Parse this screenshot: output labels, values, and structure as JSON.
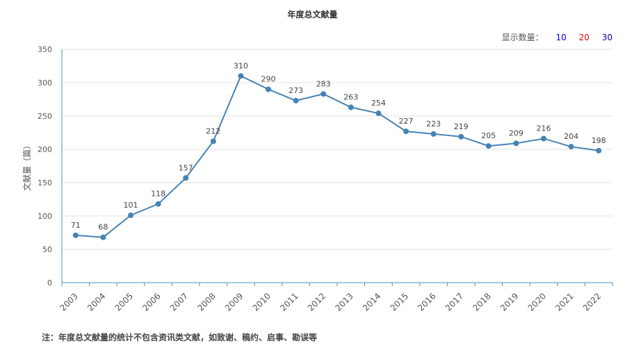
{
  "chart_data": {
    "type": "line",
    "title": "年度总文献量",
    "ylabel": "文献量（篇）",
    "xlabel": "",
    "categories": [
      "2003",
      "2004",
      "2005",
      "2006",
      "2007",
      "2008",
      "2009",
      "2010",
      "2011",
      "2012",
      "2013",
      "2014",
      "2015",
      "2016",
      "2017",
      "2018",
      "2019",
      "2020",
      "2021",
      "2022"
    ],
    "series": [
      {
        "values": [
          71,
          68,
          101,
          118,
          157,
          212,
          310,
          290,
          273,
          283,
          263,
          254,
          227,
          223,
          219,
          205,
          209,
          216,
          204,
          198
        ]
      }
    ],
    "ylim": [
      0,
      350
    ],
    "yticks": [
      0,
      50,
      100,
      150,
      200,
      250,
      300,
      350
    ],
    "grid": true,
    "colors": {
      "line": "#4682b4",
      "grid": "#e3e3e3",
      "axis": "#4a90b8"
    }
  },
  "display_count": {
    "label": "显示数量：",
    "options": [
      {
        "label": "10",
        "color": "#0000ee"
      },
      {
        "label": "20",
        "color": "#ee0000"
      },
      {
        "label": "30",
        "color": "#0000aa"
      }
    ]
  },
  "footnote": "注：年度总文献量的统计不包含资讯类文献，如致谢、稿约、启事、勘误等"
}
